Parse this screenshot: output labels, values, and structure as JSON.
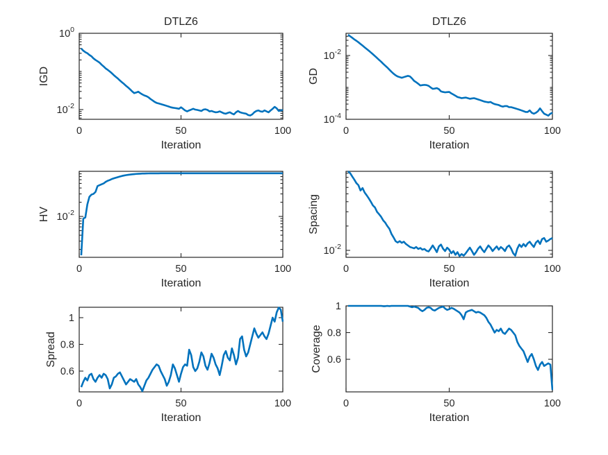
{
  "figure": {
    "background": "#ffffff",
    "colors": {
      "line": "#0072BD",
      "axis": "#262626",
      "text": "#262626"
    }
  },
  "chart_data": [
    {
      "type": "line",
      "name": "igd",
      "title": "DTLZ6",
      "xlabel": "Iteration",
      "ylabel": "IGD",
      "yscale": "log",
      "xlim": [
        0,
        100
      ],
      "xticks": [
        0,
        50,
        100
      ],
      "xtick_labels": [
        "0",
        "50",
        "100"
      ],
      "ylim": [
        0.00557,
        1.0
      ],
      "yticks": [
        1,
        0.01
      ],
      "ytick_labels": [
        "10^0",
        "10^-2"
      ],
      "x_first": 1,
      "values": [
        0.4,
        0.35,
        0.32,
        0.3,
        0.27,
        0.25,
        0.22,
        0.2,
        0.185,
        0.17,
        0.15,
        0.135,
        0.12,
        0.11,
        0.1,
        0.09,
        0.08,
        0.072,
        0.065,
        0.058,
        0.052,
        0.047,
        0.042,
        0.038,
        0.034,
        0.03,
        0.027,
        0.028,
        0.0295,
        0.027,
        0.025,
        0.0235,
        0.0225,
        0.021,
        0.019,
        0.0175,
        0.016,
        0.015,
        0.0145,
        0.014,
        0.0135,
        0.013,
        0.0125,
        0.012,
        0.0115,
        0.0112,
        0.011,
        0.0108,
        0.0105,
        0.0115,
        0.0105,
        0.0095,
        0.009,
        0.0095,
        0.01,
        0.0105,
        0.01,
        0.0098,
        0.0095,
        0.0092,
        0.01,
        0.0102,
        0.0098,
        0.009,
        0.0092,
        0.0088,
        0.0085,
        0.0086,
        0.009,
        0.0085,
        0.008,
        0.0078,
        0.0082,
        0.0085,
        0.0079,
        0.0075,
        0.0085,
        0.0092,
        0.0085,
        0.0082,
        0.008,
        0.0078,
        0.0072,
        0.007,
        0.0075,
        0.0085,
        0.0092,
        0.0095,
        0.009,
        0.0088,
        0.0095,
        0.009,
        0.0085,
        0.0095,
        0.0105,
        0.0118,
        0.0108,
        0.0092,
        0.0095,
        0.0098
      ]
    },
    {
      "type": "line",
      "name": "gd",
      "title": "DTLZ6",
      "xlabel": "Iteration",
      "ylabel": "GD",
      "yscale": "log",
      "xlim": [
        0,
        100
      ],
      "xticks": [
        0,
        50,
        100
      ],
      "xtick_labels": [
        "0",
        "50",
        "100"
      ],
      "ylim": [
        0.0001,
        0.0497
      ],
      "yticks": [
        0.01,
        0.0001
      ],
      "ytick_labels": [
        "10^-2",
        "10^-4"
      ],
      "x_first": 1,
      "values": [
        0.045,
        0.04,
        0.036,
        0.032,
        0.029,
        0.026,
        0.023,
        0.0205,
        0.018,
        0.016,
        0.0142,
        0.0125,
        0.011,
        0.0096,
        0.0084,
        0.0073,
        0.0064,
        0.0055,
        0.0048,
        0.0042,
        0.0036,
        0.0031,
        0.0027,
        0.0024,
        0.0022,
        0.0021,
        0.002,
        0.0021,
        0.0022,
        0.0023,
        0.0022,
        0.0019,
        0.0016,
        0.00145,
        0.0013,
        0.00115,
        0.00118,
        0.0012,
        0.00118,
        0.00112,
        0.001,
        0.0009,
        0.00092,
        0.00095,
        0.00088,
        0.00075,
        0.00072,
        0.0007,
        0.00071,
        0.00072,
        0.00065,
        0.0006,
        0.00055,
        0.0005,
        0.00048,
        0.00046,
        0.00047,
        0.00048,
        0.00046,
        0.00044,
        0.00045,
        0.00046,
        0.00044,
        0.00042,
        0.0004,
        0.00038,
        0.00036,
        0.00035,
        0.00034,
        0.00035,
        0.00032,
        0.0003,
        0.00029,
        0.00028,
        0.00026,
        0.00025,
        0.00026,
        0.00026,
        0.00024,
        0.00024,
        0.00023,
        0.00022,
        0.00021,
        0.0002,
        0.00019,
        0.00018,
        0.00017,
        0.00017,
        0.00019,
        0.00016,
        0.00015,
        0.00016,
        0.00018,
        0.00022,
        0.00018,
        0.00015,
        0.00014,
        0.00013,
        0.00015,
        0.00016
      ]
    },
    {
      "type": "line",
      "name": "hv",
      "title": "",
      "xlabel": "Iteration",
      "ylabel": "HV",
      "yscale": "log",
      "xlim": [
        0,
        100
      ],
      "xticks": [
        0,
        50,
        100
      ],
      "xtick_labels": [
        "0",
        "50",
        "100"
      ],
      "ylim": [
        0.00136,
        0.0903
      ],
      "yticks": [
        0.01
      ],
      "ytick_labels": [
        "10^-2"
      ],
      "x_first": 1,
      "values": [
        0.0015,
        0.009,
        0.0095,
        0.018,
        0.026,
        0.029,
        0.03,
        0.033,
        0.044,
        0.046,
        0.048,
        0.05,
        0.054,
        0.057,
        0.059,
        0.062,
        0.064,
        0.066,
        0.068,
        0.07,
        0.072,
        0.0735,
        0.075,
        0.076,
        0.077,
        0.078,
        0.0788,
        0.0795,
        0.08,
        0.0805,
        0.081,
        0.0812,
        0.0815,
        0.0816,
        0.0817,
        0.0818,
        0.0818,
        0.0819,
        0.0819,
        0.082,
        0.082,
        0.082,
        0.082,
        0.082,
        0.082,
        0.082,
        0.082,
        0.082,
        0.082,
        0.082,
        0.082,
        0.082,
        0.082,
        0.082,
        0.082,
        0.082,
        0.082,
        0.082,
        0.082,
        0.082,
        0.082,
        0.082,
        0.082,
        0.082,
        0.082,
        0.082,
        0.082,
        0.082,
        0.082,
        0.082,
        0.082,
        0.082,
        0.082,
        0.082,
        0.082,
        0.082,
        0.082,
        0.082,
        0.082,
        0.082,
        0.082,
        0.082,
        0.082,
        0.082,
        0.082,
        0.082,
        0.082,
        0.082,
        0.082,
        0.082,
        0.082,
        0.082,
        0.082,
        0.082,
        0.082,
        0.082,
        0.082,
        0.082,
        0.082,
        0.082
      ]
    },
    {
      "type": "line",
      "name": "spacing",
      "title": "",
      "xlabel": "Iteration",
      "ylabel": "Spacing",
      "yscale": "log",
      "xlim": [
        0,
        100
      ],
      "xticks": [
        0,
        50,
        100
      ],
      "xtick_labels": [
        "0",
        "50",
        "100"
      ],
      "ylim": [
        0.0082,
        0.095
      ],
      "yticks": [
        0.01
      ],
      "ytick_labels": [
        "10^-2"
      ],
      "x_first": 1,
      "values": [
        0.095,
        0.09,
        0.082,
        0.075,
        0.068,
        0.064,
        0.055,
        0.059,
        0.052,
        0.048,
        0.044,
        0.04,
        0.036,
        0.034,
        0.03,
        0.028,
        0.026,
        0.0235,
        0.022,
        0.02,
        0.0185,
        0.016,
        0.0145,
        0.013,
        0.0125,
        0.013,
        0.0124,
        0.0128,
        0.012,
        0.0115,
        0.011,
        0.0108,
        0.0106,
        0.011,
        0.0104,
        0.0107,
        0.0102,
        0.0104,
        0.0099,
        0.0097,
        0.0105,
        0.0115,
        0.0105,
        0.0095,
        0.0112,
        0.0118,
        0.0105,
        0.0098,
        0.0108,
        0.0102,
        0.0092,
        0.0098,
        0.0088,
        0.0095,
        0.0085,
        0.009,
        0.0086,
        0.0092,
        0.01,
        0.0108,
        0.0098,
        0.0088,
        0.0095,
        0.0105,
        0.0112,
        0.0102,
        0.0095,
        0.0105,
        0.0115,
        0.0108,
        0.0098,
        0.0105,
        0.0112,
        0.0102,
        0.011,
        0.0105,
        0.0098,
        0.011,
        0.0115,
        0.0105,
        0.0092,
        0.0086,
        0.0105,
        0.0118,
        0.011,
        0.012,
        0.0112,
        0.0122,
        0.0128,
        0.0118,
        0.011,
        0.0125,
        0.0132,
        0.012,
        0.0138,
        0.0142,
        0.0128,
        0.0132,
        0.0138,
        0.0142
      ]
    },
    {
      "type": "line",
      "name": "spread",
      "title": "",
      "xlabel": "Iteration",
      "ylabel": "Spread",
      "yscale": "linear",
      "xlim": [
        0,
        100
      ],
      "xticks": [
        0,
        50,
        100
      ],
      "xtick_labels": [
        "0",
        "50",
        "100"
      ],
      "ylim": [
        0.4442,
        1.0779
      ],
      "yticks": [
        0.6,
        0.8,
        1
      ],
      "ytick_labels": [
        "0.6",
        "0.8",
        "1"
      ],
      "x_first": 1,
      "values": [
        0.48,
        0.52,
        0.55,
        0.53,
        0.57,
        0.58,
        0.54,
        0.52,
        0.55,
        0.57,
        0.55,
        0.58,
        0.57,
        0.54,
        0.47,
        0.5,
        0.55,
        0.56,
        0.58,
        0.59,
        0.56,
        0.53,
        0.5,
        0.52,
        0.54,
        0.53,
        0.52,
        0.54,
        0.5,
        0.48,
        0.45,
        0.49,
        0.53,
        0.55,
        0.58,
        0.61,
        0.63,
        0.65,
        0.64,
        0.6,
        0.57,
        0.54,
        0.49,
        0.52,
        0.57,
        0.65,
        0.62,
        0.57,
        0.52,
        0.58,
        0.63,
        0.65,
        0.64,
        0.76,
        0.72,
        0.63,
        0.6,
        0.62,
        0.67,
        0.74,
        0.71,
        0.64,
        0.61,
        0.66,
        0.73,
        0.7,
        0.65,
        0.62,
        0.57,
        0.64,
        0.72,
        0.75,
        0.7,
        0.68,
        0.77,
        0.72,
        0.65,
        0.7,
        0.84,
        0.86,
        0.76,
        0.71,
        0.74,
        0.8,
        0.86,
        0.92,
        0.88,
        0.85,
        0.87,
        0.89,
        0.86,
        0.84,
        0.88,
        0.94,
        1.0,
        0.97,
        1.04,
        1.075,
        1.06,
        0.97
      ]
    },
    {
      "type": "line",
      "name": "coverage",
      "title": "",
      "xlabel": "Iteration",
      "ylabel": "Coverage",
      "yscale": "linear",
      "xlim": [
        0,
        100
      ],
      "xticks": [
        0,
        50,
        100
      ],
      "xtick_labels": [
        "0",
        "50",
        "100"
      ],
      "ylim": [
        0.356,
        1.0
      ],
      "yticks": [
        0.6,
        0.8,
        1
      ],
      "ytick_labels": [
        "0.6",
        "0.8",
        "1"
      ],
      "x_first": 1,
      "values": [
        1,
        1,
        1,
        1,
        1,
        1,
        1,
        1,
        1,
        1,
        1,
        1,
        1,
        1,
        1,
        1,
        1,
        0.998,
        0.998,
        1,
        0.998,
        1,
        1,
        1,
        1,
        1,
        1,
        1,
        1,
        1,
        0.995,
        0.99,
        0.995,
        0.99,
        0.985,
        0.97,
        0.96,
        0.97,
        0.985,
        0.99,
        0.985,
        0.97,
        0.965,
        0.975,
        0.985,
        0.99,
        0.995,
        0.98,
        0.97,
        0.975,
        0.985,
        0.98,
        0.97,
        0.96,
        0.95,
        0.93,
        0.9,
        0.95,
        0.96,
        0.965,
        0.97,
        0.96,
        0.95,
        0.955,
        0.95,
        0.94,
        0.93,
        0.91,
        0.88,
        0.86,
        0.83,
        0.8,
        0.82,
        0.81,
        0.83,
        0.8,
        0.79,
        0.81,
        0.83,
        0.82,
        0.8,
        0.78,
        0.73,
        0.7,
        0.68,
        0.66,
        0.62,
        0.58,
        0.62,
        0.64,
        0.6,
        0.55,
        0.52,
        0.56,
        0.58,
        0.55,
        0.56,
        0.57,
        0.56,
        0.37
      ]
    }
  ]
}
